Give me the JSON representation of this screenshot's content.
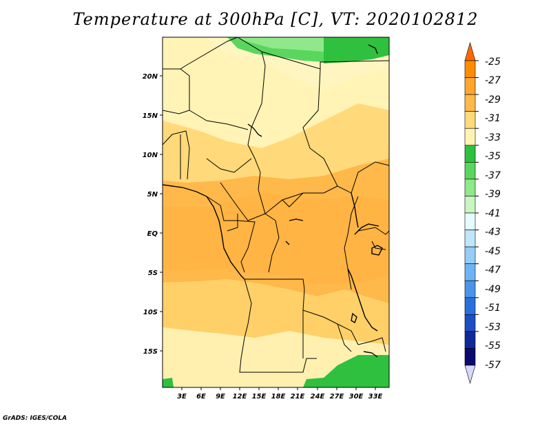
{
  "title": "Temperature at 300hPa [C], VT: 2020102812",
  "footer": "GrADS: IGES/COLA",
  "map": {
    "lat_labels": [
      "20N",
      "15N",
      "10N",
      "5N",
      "EQ",
      "5S",
      "10S",
      "15S"
    ],
    "lon_labels": [
      "3E",
      "6E",
      "9E",
      "12E",
      "15E",
      "18E",
      "21E",
      "24E",
      "27E",
      "30E",
      "33E"
    ]
  },
  "colorbar": {
    "labels": [
      "-25",
      "-27",
      "-29",
      "-31",
      "-33",
      "-35",
      "-37",
      "-39",
      "-41",
      "-43",
      "-45",
      "-47",
      "-49",
      "-51",
      "-53",
      "-55",
      "-57"
    ],
    "colors": [
      "#ff6a00",
      "#ff8c00",
      "#ffa530",
      "#ffb84a",
      "#ffd97a",
      "#fff3b5",
      "#2ec03e",
      "#5ad65e",
      "#8fe88a",
      "#c8f5c0",
      "#e6fbfd",
      "#bfe6fb",
      "#96cdf7",
      "#6fb4f2",
      "#4a94ea",
      "#2a6fdc",
      "#1c4fc4",
      "#0f2a98",
      "#0a0a70",
      "#d8d8f8"
    ]
  },
  "colors": {
    "frame": "#000000",
    "green_dark": "#2ec03e",
    "green_mid": "#5ad65e",
    "yellow_pale": "#fff3b5",
    "yellow": "#ffd97a",
    "orange_light": "#ffc05a",
    "orange": "#ffb84a"
  }
}
